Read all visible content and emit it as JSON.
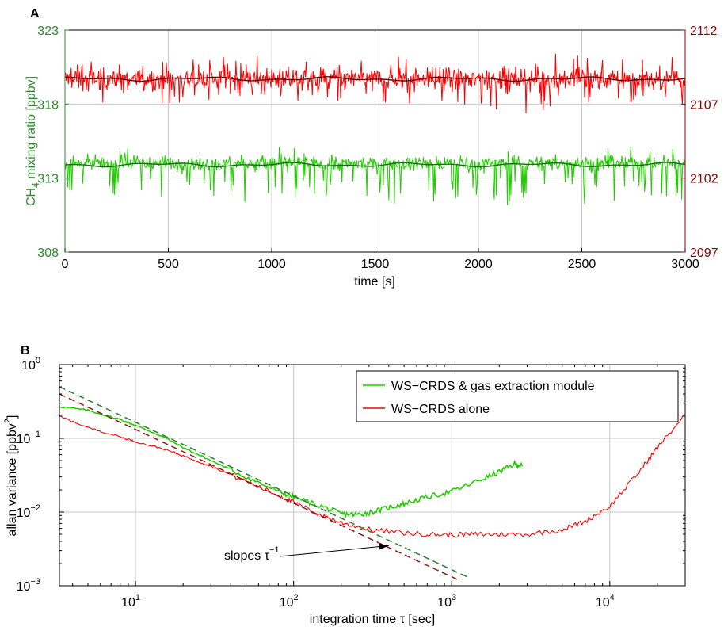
{
  "chart_data": [
    {
      "type": "line",
      "panel_label": "A",
      "xlabel": "time [s]",
      "ylabel_left": "CH4 mixing ratio [ppbv]",
      "ylabel_left_main": "CH",
      "ylabel_left_sub": "4",
      "ylabel_left_rest": " mixing ratio [ppbv]",
      "ylabel_right": "",
      "xlim": [
        0,
        3000
      ],
      "ylim_left": [
        308,
        323
      ],
      "ylim_right": [
        2097,
        2112
      ],
      "xticks": [
        0,
        500,
        1000,
        1500,
        2000,
        2500,
        3000
      ],
      "xtick_labels": [
        "0",
        "500",
        "1000",
        "1500",
        "2000",
        "2500",
        "3000"
      ],
      "yticks_left": [
        308,
        313,
        318,
        323
      ],
      "ytick_labels_left": [
        "308",
        "313",
        "318",
        "323"
      ],
      "yticks_right": [
        2097,
        2102,
        2107,
        2112
      ],
      "ytick_labels_right": [
        "2097",
        "2102",
        "2107",
        "2112"
      ],
      "grid": true,
      "colors": {
        "left_axis": "#2e8b2e",
        "right_axis": "#8b0000",
        "green_raw": "#22cc00",
        "green_smooth": "#1a6b1a",
        "red_raw": "#ff0000",
        "red_smooth": "#6b0000"
      },
      "series": [
        {
          "axis": "right",
          "mean": 2108.7,
          "noise": 0.55,
          "spike_down_prob": 0.06,
          "spike_down_depth": 1.2,
          "spike_up_prob": 0.04,
          "spike_up_height": 1.0,
          "style": "raw"
        },
        {
          "axis": "right",
          "mean": 2108.7,
          "wiggle": 0.15,
          "style": "smooth"
        },
        {
          "axis": "left",
          "mean": 314.0,
          "noise": 0.35,
          "spike_down_prob": 0.1,
          "spike_down_depth": 1.7,
          "spike_up_prob": 0.02,
          "spike_up_height": 0.7,
          "style": "raw"
        },
        {
          "axis": "left",
          "mean": 313.9,
          "wiggle": 0.15,
          "style": "smooth"
        }
      ]
    },
    {
      "type": "line",
      "panel_label": "B",
      "xlabel": "integration time τ [sec]",
      "ylabel": "allan variance [ppbv²]",
      "ylabel_main": "allan variance [ppbv",
      "ylabel_sup": "2",
      "ylabel_close": "]",
      "xscale": "log",
      "yscale": "log",
      "xlim": [
        3.3,
        30000
      ],
      "ylim": [
        0.001,
        1
      ],
      "xticks": [
        10,
        100,
        1000,
        10000
      ],
      "xtick_bases": [
        "10",
        "10",
        "10",
        "10"
      ],
      "xtick_exps": [
        "1",
        "2",
        "3",
        "4"
      ],
      "yticks": [
        0.001,
        0.01,
        0.1,
        1
      ],
      "ytick_bases": [
        "10",
        "10",
        "10",
        "10"
      ],
      "ytick_exps": [
        "−3",
        "−2",
        "−1",
        "0"
      ],
      "grid": true,
      "legend": {
        "position": "top-right",
        "entries": [
          {
            "label": "WS−CRDS & gas extraction module",
            "color": "#22cc00"
          },
          {
            "label": "WS−CRDS alone",
            "color": "#ff0000"
          }
        ]
      },
      "annotation": {
        "text": "slopes τ",
        "sup": "−1",
        "arrow_to": [
          400,
          0.0035
        ]
      },
      "series": [
        {
          "name": "WS−CRDS & gas extraction module",
          "color": "#22cc00",
          "x": [
            3.3,
            5,
            8,
            10,
            15,
            20,
            30,
            50,
            80,
            100,
            150,
            200,
            250,
            300,
            400,
            500,
            700,
            1000,
            1500,
            2000,
            2500,
            2800
          ],
          "y": [
            0.27,
            0.24,
            0.18,
            0.15,
            0.105,
            0.075,
            0.05,
            0.03,
            0.019,
            0.016,
            0.012,
            0.0095,
            0.0092,
            0.0098,
            0.0115,
            0.013,
            0.016,
            0.019,
            0.027,
            0.035,
            0.045,
            0.042
          ]
        },
        {
          "name": "WS−CRDS alone",
          "color": "#ff0000",
          "x": [
            3.3,
            5,
            8,
            10,
            15,
            20,
            30,
            50,
            80,
            100,
            150,
            200,
            300,
            500,
            700,
            1000,
            1500,
            2000,
            3000,
            5000,
            7000,
            10000,
            15000,
            20000,
            30000
          ],
          "y": [
            0.2,
            0.14,
            0.105,
            0.09,
            0.072,
            0.058,
            0.042,
            0.026,
            0.017,
            0.0135,
            0.009,
            0.0072,
            0.0058,
            0.0052,
            0.005,
            0.0049,
            0.005,
            0.005,
            0.005,
            0.0058,
            0.0075,
            0.012,
            0.033,
            0.075,
            0.21
          ]
        },
        {
          "name": "",
          "color": "#2e7d2e",
          "dash": true,
          "x": [
            3.3,
            1300
          ],
          "y": [
            0.5,
            0.00127
          ]
        },
        {
          "name": "",
          "color": "#8b1a1a",
          "dash": true,
          "x": [
            3.3,
            1100
          ],
          "y": [
            0.4,
            0.0012
          ]
        }
      ]
    }
  ]
}
